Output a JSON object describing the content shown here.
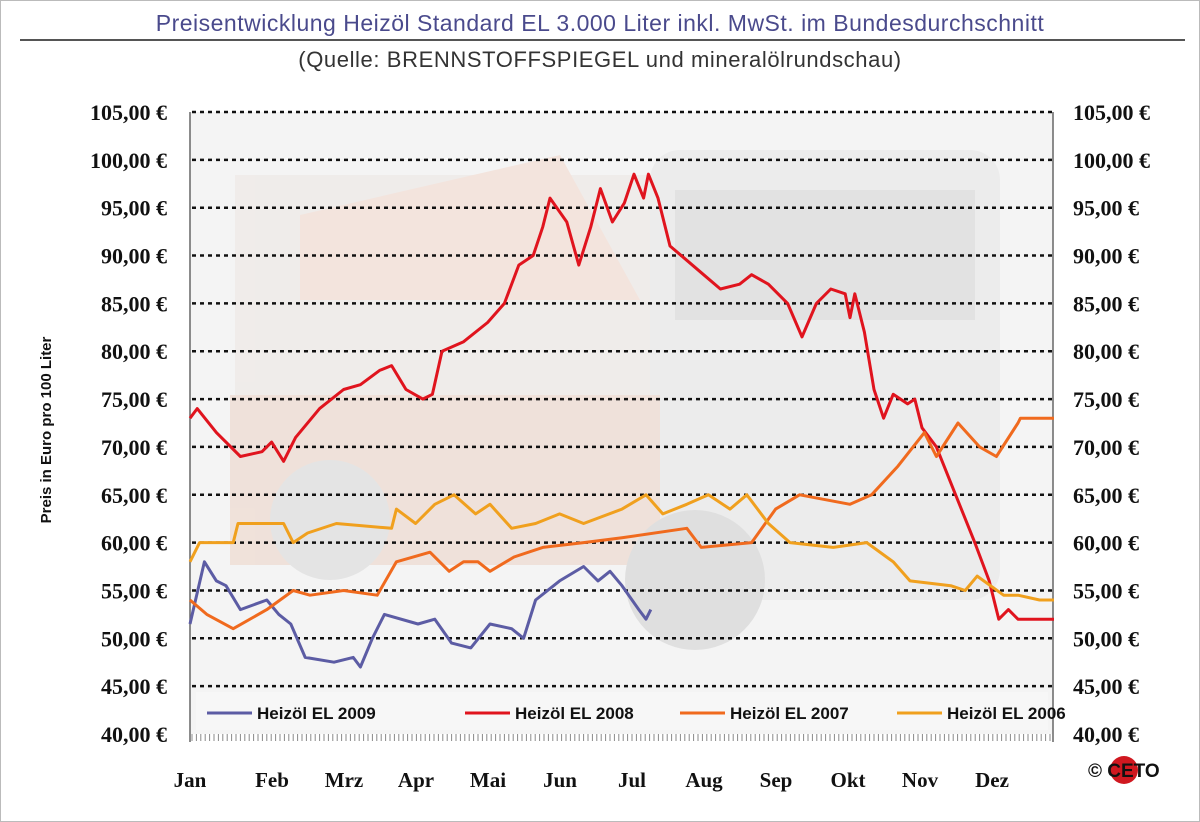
{
  "chart_data": {
    "type": "line",
    "title": "Preisentwicklung Heizöl Standard EL 3.000 Liter inkl. MwSt. im Bundesdurchschnitt",
    "subtitle": "(Quelle: BRENNSTOFFSPIEGEL und mineralölrundschau)",
    "ylabel": "Preis in Euro pro 100 Liter",
    "xlabel": "",
    "ylim": [
      40,
      105
    ],
    "yticks": [
      "40,00 €",
      "45,00 €",
      "50,00 €",
      "55,00 €",
      "60,00 €",
      "65,00 €",
      "70,00 €",
      "75,00 €",
      "80,00 €",
      "85,00 €",
      "90,00 €",
      "95,00 €",
      "100,00 €",
      "105,00 €"
    ],
    "months": [
      "Jan",
      "Feb",
      "Mrz",
      "Apr",
      "Mai",
      "Jun",
      "Jul",
      "Aug",
      "Sep",
      "Okt",
      "Nov",
      "Dez"
    ],
    "grid": true,
    "legend_position": "bottom",
    "copyright": "© CETO",
    "series": [
      {
        "name": "Heizöl EL 2009",
        "color": "#5c5ca4",
        "x": [
          "01-01",
          "01-07",
          "01-12",
          "01-16",
          "01-22",
          "02-03",
          "02-08",
          "02-13",
          "02-19",
          "03-01",
          "03-09",
          "03-12",
          "03-17",
          "03-22",
          "04-06",
          "04-13",
          "04-20",
          "04-28",
          "05-06",
          "05-15",
          "05-20",
          "05-25",
          "06-05",
          "06-15",
          "06-21",
          "06-26",
          "07-01",
          "07-08",
          "07-11",
          "07-13"
        ],
        "values": [
          51.5,
          58,
          56,
          55.5,
          53,
          54,
          52.5,
          51.5,
          48,
          47.5,
          48,
          47,
          50,
          52.5,
          51.5,
          52,
          49.5,
          49,
          51.5,
          51,
          50,
          54,
          56,
          57.5,
          56,
          57,
          55.5,
          53,
          52,
          53
        ]
      },
      {
        "name": "Heizöl EL 2008",
        "color": "#e0141e",
        "x": [
          "01-01",
          "01-04",
          "01-12",
          "01-22",
          "02-01",
          "02-05",
          "02-10",
          "02-15",
          "02-25",
          "03-05",
          "03-12",
          "03-20",
          "03-25",
          "04-01",
          "04-08",
          "04-12",
          "04-16",
          "04-25",
          "05-05",
          "05-12",
          "05-18",
          "05-24",
          "05-28",
          "06-01",
          "06-08",
          "06-13",
          "06-18",
          "06-22",
          "06-27",
          "07-02",
          "07-06",
          "07-10",
          "07-12",
          "07-16",
          "07-21",
          "07-28",
          "08-05",
          "08-12",
          "08-20",
          "08-25",
          "09-02",
          "09-10",
          "09-16",
          "09-22",
          "09-28",
          "10-04",
          "10-06",
          "10-08",
          "10-12",
          "10-16",
          "10-20",
          "10-24",
          "10-30",
          "11-03",
          "11-06",
          "11-12",
          "11-20",
          "11-28",
          "12-04",
          "12-08",
          "12-12",
          "12-16",
          "12-31"
        ],
        "values": [
          73,
          74,
          71.5,
          69,
          69.5,
          70.5,
          68.5,
          71,
          74,
          76,
          76.5,
          78,
          78.5,
          76,
          75,
          75.5,
          80,
          81,
          83,
          85,
          89,
          90,
          93,
          96,
          93.5,
          89,
          93,
          97,
          93.5,
          95.5,
          98.5,
          96,
          98.5,
          96,
          91,
          89.5,
          88,
          86.5,
          87,
          88,
          87,
          85,
          81.5,
          85,
          86.5,
          86,
          83.5,
          86,
          82,
          76,
          73,
          75.5,
          74.5,
          75,
          72,
          70,
          65,
          60,
          56,
          52,
          53,
          52,
          52
        ]
      },
      {
        "name": "Heizöl EL 2007",
        "color": "#f06a1e",
        "x": [
          "01-01",
          "01-08",
          "01-19",
          "02-03",
          "02-14",
          "02-21",
          "03-05",
          "03-19",
          "03-27",
          "04-11",
          "04-19",
          "04-25",
          "05-01",
          "05-06",
          "05-16",
          "05-28",
          "06-15",
          "07-01",
          "07-28",
          "08-04",
          "08-25",
          "09-05",
          "09-15",
          "10-06",
          "10-15",
          "10-26",
          "11-07",
          "11-12",
          "11-21",
          "11-30",
          "12-07",
          "12-16",
          "12-17",
          "12-31"
        ],
        "values": [
          54,
          52.5,
          51,
          53,
          55,
          54.5,
          55,
          54.5,
          58,
          59,
          57,
          58,
          58,
          57,
          58.5,
          59.5,
          60,
          60.5,
          61.5,
          59.5,
          60,
          63.5,
          65,
          64,
          65,
          68,
          71.5,
          69,
          72.5,
          70,
          69,
          72.5,
          73,
          73
        ]
      },
      {
        "name": "Heizöl EL 2006",
        "color": "#f0a01e",
        "x": [
          "01-01",
          "01-05",
          "01-19",
          "01-21",
          "02-10",
          "02-14",
          "02-20",
          "03-02",
          "03-25",
          "03-27",
          "04-05",
          "04-13",
          "04-21",
          "04-30",
          "05-06",
          "05-15",
          "05-25",
          "06-05",
          "06-15",
          "07-01",
          "07-11",
          "07-18",
          "07-28",
          "08-07",
          "08-16",
          "08-23",
          "09-02",
          "09-11",
          "09-29",
          "10-13",
          "10-24",
          "10-31",
          "11-18",
          "11-24",
          "11-29",
          "12-10",
          "12-16",
          "12-25",
          "12-31"
        ],
        "values": [
          58,
          60,
          60,
          62,
          62,
          60,
          61,
          62,
          61.5,
          63.5,
          62,
          64,
          65,
          63,
          64,
          61.5,
          62,
          63,
          62,
          63.5,
          65,
          63,
          64,
          65,
          63.5,
          65,
          62,
          60,
          59.5,
          60,
          58,
          56,
          55.5,
          55,
          56.5,
          54.5,
          54.5,
          54,
          54
        ]
      }
    ]
  }
}
